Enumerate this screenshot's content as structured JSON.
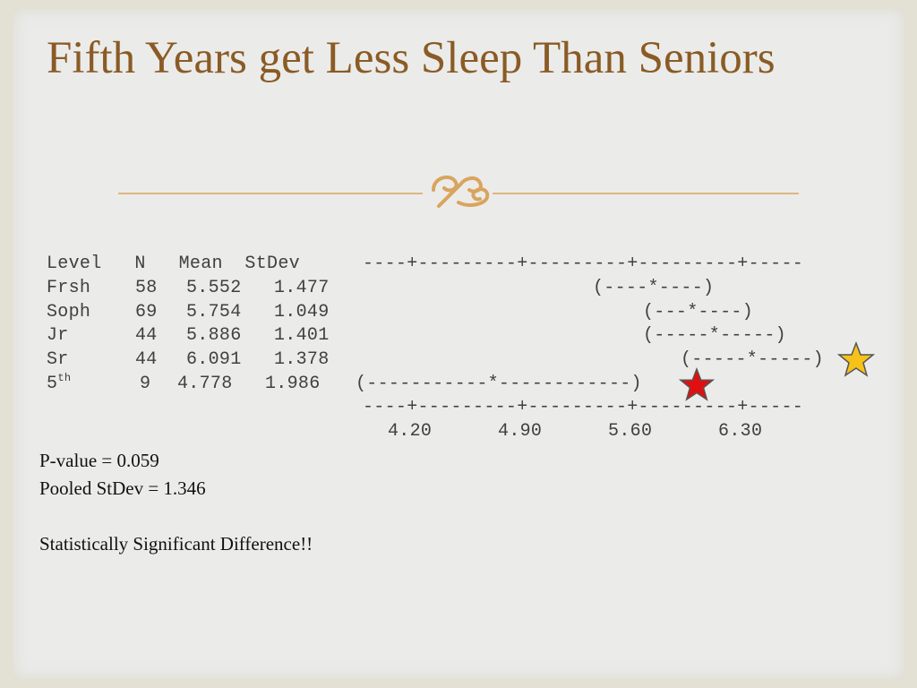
{
  "title": "Fifth Years get Less Sleep Than Seniors",
  "table": {
    "header": "Level   N   Mean  StDev",
    "rows": [
      {
        "level": "Frsh",
        "n": "58",
        "mean": "5.552",
        "stdev": "1.477",
        "interval": "(----*----)"
      },
      {
        "level": "Soph",
        "n": "69",
        "mean": "5.754",
        "stdev": "1.049",
        "interval": "(---*----)"
      },
      {
        "level": "Jr",
        "n": "44",
        "mean": "5.886",
        "stdev": "1.401",
        "interval": "(-----*-----)"
      },
      {
        "level": "Sr",
        "n": "44",
        "mean": "6.091",
        "stdev": "1.378",
        "interval": "(-----*-----)"
      },
      {
        "level": "5",
        "level_sup": "th",
        "n": "9",
        "mean": "4.778",
        "stdev": "1.986",
        "interval": "(-----------*------------)"
      }
    ],
    "axis_rule_top": "----+---------+---------+---------+-----",
    "axis_rule_bottom": "----+---------+---------+---------+-----",
    "axis_ticks": "4.20      4.90      5.60      6.30"
  },
  "p_value": "P-value = 0.059",
  "pooled_stdev": "Pooled StDev = 1.346",
  "conclusion": "Statistically Significant Difference!!",
  "colors": {
    "title": "#8a5b24",
    "gold_star": "#f6c21a",
    "red_star": "#e01010",
    "divider": "#d9a45e"
  },
  "icons": {
    "divider_ornament": "scroll-ornament-icon",
    "senior_marker": "gold-star-icon",
    "fifth_year_marker": "red-star-icon"
  }
}
